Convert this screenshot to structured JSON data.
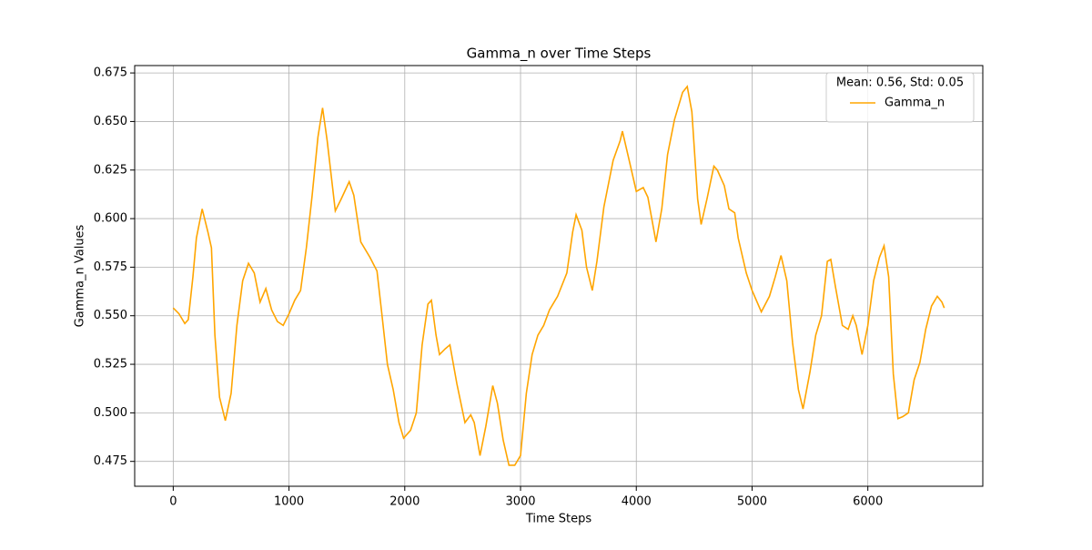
{
  "chart_data": {
    "type": "line",
    "title": "Gamma_n over Time Steps",
    "x_label": "Time Steps",
    "y_label": "Gamma_n Values",
    "legend_title": "Mean: 0.56, Std: 0.05",
    "legend_position": "upper right",
    "grid": true,
    "xlim": [
      -333,
      6993
    ],
    "ylim": [
      0.4622,
      0.6788
    ],
    "xticks": [
      0,
      1000,
      2000,
      3000,
      4000,
      5000,
      6000
    ],
    "yticks": [
      {
        "value": 0.475,
        "label": "0.475"
      },
      {
        "value": 0.5,
        "label": "0.500"
      },
      {
        "value": 0.525,
        "label": "0.525"
      },
      {
        "value": 0.55,
        "label": "0.550"
      },
      {
        "value": 0.575,
        "label": "0.575"
      },
      {
        "value": 0.6,
        "label": "0.600"
      },
      {
        "value": 0.625,
        "label": "0.625"
      },
      {
        "value": 0.65,
        "label": "0.650"
      },
      {
        "value": 0.675,
        "label": "0.675"
      }
    ],
    "x": [
      0,
      50,
      100,
      130,
      170,
      200,
      250,
      300,
      330,
      360,
      400,
      450,
      500,
      550,
      600,
      650,
      700,
      750,
      800,
      850,
      900,
      950,
      1000,
      1050,
      1100,
      1150,
      1200,
      1250,
      1290,
      1330,
      1400,
      1450,
      1520,
      1560,
      1620,
      1700,
      1760,
      1800,
      1850,
      1900,
      1950,
      1990,
      2050,
      2100,
      2150,
      2200,
      2230,
      2270,
      2300,
      2350,
      2390,
      2450,
      2520,
      2570,
      2600,
      2650,
      2700,
      2760,
      2800,
      2850,
      2900,
      2950,
      3000,
      3050,
      3100,
      3150,
      3200,
      3250,
      3320,
      3400,
      3450,
      3480,
      3530,
      3570,
      3620,
      3660,
      3720,
      3800,
      3860,
      3880,
      3950,
      4000,
      4060,
      4100,
      4170,
      4220,
      4270,
      4330,
      4400,
      4440,
      4480,
      4530,
      4560,
      4610,
      4670,
      4700,
      4760,
      4800,
      4850,
      4880,
      4950,
      5000,
      5080,
      5150,
      5200,
      5250,
      5300,
      5350,
      5400,
      5440,
      5500,
      5550,
      5600,
      5650,
      5680,
      5720,
      5780,
      5830,
      5870,
      5900,
      5950,
      6000,
      6050,
      6100,
      6140,
      6180,
      6220,
      6260,
      6300,
      6350,
      6400,
      6450,
      6500,
      6550,
      6600,
      6640,
      6660
    ],
    "series": [
      {
        "name": "Gamma_n",
        "color": "#ffa500",
        "values": [
          0.554,
          0.551,
          0.546,
          0.548,
          0.57,
          0.59,
          0.605,
          0.593,
          0.585,
          0.54,
          0.508,
          0.496,
          0.51,
          0.545,
          0.568,
          0.577,
          0.572,
          0.557,
          0.564,
          0.553,
          0.547,
          0.545,
          0.551,
          0.558,
          0.563,
          0.585,
          0.612,
          0.642,
          0.657,
          0.64,
          0.604,
          0.61,
          0.619,
          0.612,
          0.588,
          0.58,
          0.573,
          0.552,
          0.525,
          0.512,
          0.495,
          0.487,
          0.491,
          0.5,
          0.535,
          0.556,
          0.558,
          0.54,
          0.53,
          0.533,
          0.535,
          0.515,
          0.495,
          0.499,
          0.495,
          0.478,
          0.493,
          0.514,
          0.505,
          0.486,
          0.473,
          0.473,
          0.478,
          0.51,
          0.53,
          0.54,
          0.545,
          0.553,
          0.56,
          0.572,
          0.593,
          0.602,
          0.594,
          0.575,
          0.563,
          0.578,
          0.606,
          0.63,
          0.64,
          0.645,
          0.627,
          0.614,
          0.616,
          0.611,
          0.588,
          0.605,
          0.633,
          0.651,
          0.665,
          0.668,
          0.655,
          0.61,
          0.597,
          0.61,
          0.627,
          0.625,
          0.617,
          0.605,
          0.603,
          0.59,
          0.572,
          0.563,
          0.552,
          0.56,
          0.57,
          0.581,
          0.568,
          0.536,
          0.512,
          0.502,
          0.521,
          0.54,
          0.55,
          0.578,
          0.579,
          0.565,
          0.545,
          0.543,
          0.55,
          0.545,
          0.53,
          0.545,
          0.568,
          0.58,
          0.586,
          0.57,
          0.52,
          0.497,
          0.498,
          0.5,
          0.517,
          0.526,
          0.543,
          0.555,
          0.56,
          0.557,
          0.554
        ]
      }
    ]
  }
}
